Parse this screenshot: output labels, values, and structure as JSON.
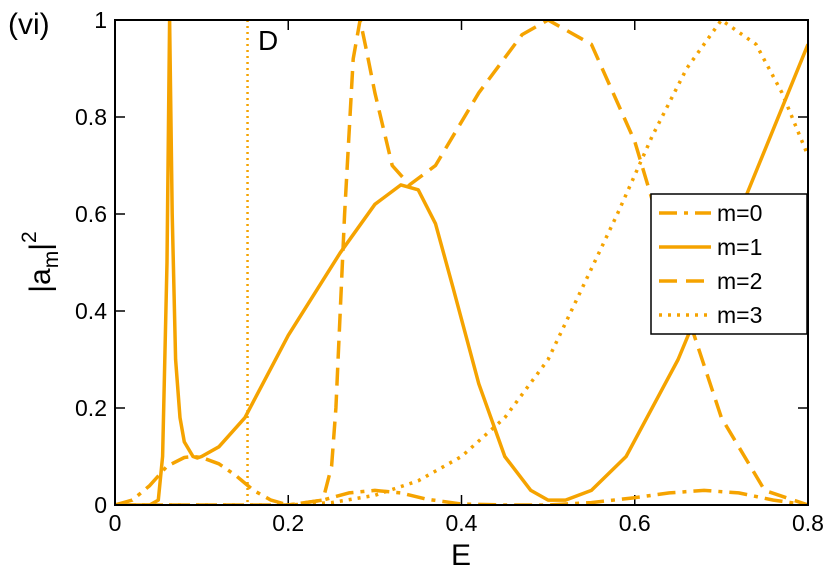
{
  "chart_data": {
    "type": "line",
    "panel_label": "(vi)",
    "annotation": "D",
    "vline": 0.153,
    "xlabel": "E",
    "ylabel_parts": [
      "|a",
      "m",
      "|",
      "2"
    ],
    "xlim": [
      0,
      0.8
    ],
    "ylim": [
      0,
      1
    ],
    "xticks": [
      0,
      0.2,
      0.4,
      0.6,
      0.8
    ],
    "yticks": [
      0,
      0.2,
      0.4,
      0.6,
      0.8,
      1
    ],
    "legend": "right",
    "series": [
      {
        "name": "m=0",
        "color": "#f5a300",
        "dash": "dashdot",
        "x": [
          0,
          0.02,
          0.04,
          0.06,
          0.08,
          0.09,
          0.1,
          0.12,
          0.14,
          0.16,
          0.18,
          0.2,
          0.24,
          0.27,
          0.3,
          0.33,
          0.36,
          0.4,
          0.45,
          0.5,
          0.55,
          0.6,
          0.64,
          0.68,
          0.72,
          0.76,
          0.8
        ],
        "values": [
          0,
          0.01,
          0.04,
          0.08,
          0.098,
          0.1,
          0.098,
          0.085,
          0.06,
          0.03,
          0.01,
          0,
          0.01,
          0.025,
          0.03,
          0.025,
          0.012,
          0.002,
          0,
          0,
          0.005,
          0.015,
          0.025,
          0.03,
          0.025,
          0.01,
          0
        ]
      },
      {
        "name": "m=1",
        "color": "#f5a300",
        "dash": "solid",
        "x": [
          0,
          0.04,
          0.05,
          0.055,
          0.06,
          0.063,
          0.066,
          0.07,
          0.075,
          0.08,
          0.09,
          0.095,
          0.1,
          0.12,
          0.15,
          0.2,
          0.26,
          0.3,
          0.33,
          0.35,
          0.37,
          0.39,
          0.42,
          0.45,
          0.48,
          0.5,
          0.52,
          0.55,
          0.59,
          0.65,
          0.72,
          0.8
        ],
        "values": [
          0,
          0,
          0.01,
          0.1,
          0.5,
          1,
          0.6,
          0.3,
          0.18,
          0.13,
          0.1,
          0.097,
          0.1,
          0.12,
          0.18,
          0.35,
          0.52,
          0.62,
          0.66,
          0.65,
          0.58,
          0.45,
          0.25,
          0.1,
          0.03,
          0.01,
          0.01,
          0.03,
          0.1,
          0.3,
          0.6,
          0.95
        ]
      },
      {
        "name": "m=2",
        "color": "#f5a300",
        "dash": "dashed",
        "x": [
          0,
          0.2,
          0.24,
          0.25,
          0.255,
          0.265,
          0.275,
          0.283,
          0.29,
          0.3,
          0.32,
          0.34,
          0.37,
          0.42,
          0.47,
          0.5,
          0.55,
          0.6,
          0.65,
          0.7,
          0.75,
          0.8
        ],
        "values": [
          0,
          0,
          0.01,
          0.08,
          0.2,
          0.6,
          0.92,
          1,
          0.94,
          0.85,
          0.7,
          0.66,
          0.7,
          0.85,
          0.97,
          1,
          0.95,
          0.75,
          0.45,
          0.18,
          0.03,
          0
        ],
        "axis": "y"
      },
      {
        "name": "m=3",
        "color": "#f5a300",
        "dash": "dotted",
        "x": [
          0,
          0.2,
          0.25,
          0.3,
          0.35,
          0.4,
          0.45,
          0.5,
          0.54,
          0.58,
          0.62,
          0.66,
          0.7,
          0.74,
          0.77,
          0.8
        ],
        "values": [
          0,
          0,
          0.005,
          0.02,
          0.05,
          0.1,
          0.18,
          0.3,
          0.45,
          0.6,
          0.76,
          0.9,
          1,
          0.95,
          0.85,
          0.72
        ]
      }
    ]
  }
}
